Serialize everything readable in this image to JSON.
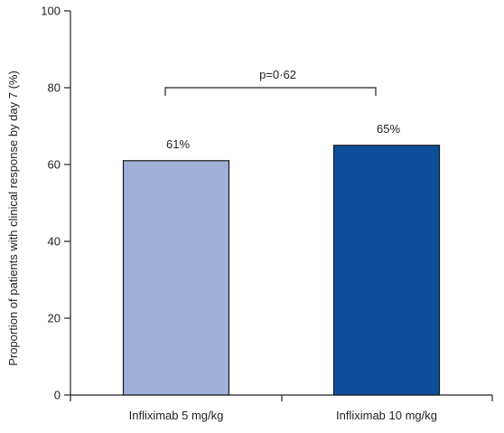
{
  "chart_data": {
    "type": "bar",
    "categories": [
      "Infliximab 5 mg/kg",
      "Infliximab 10 mg/kg"
    ],
    "values": [
      61,
      65
    ],
    "data_labels": [
      "61%",
      "65%"
    ],
    "title": "",
    "xlabel": "",
    "ylabel": "Proportion of patients with clinical response by day 7 (%)",
    "ylim": [
      0,
      100
    ],
    "yticks": [
      0,
      20,
      40,
      60,
      80,
      100
    ],
    "ytick_labels": [
      "0",
      "20",
      "40",
      "60",
      "80",
      "100"
    ],
    "grid": false,
    "legend": "none",
    "bar_colors": [
      "#a1b0d6",
      "#0a4f98"
    ],
    "bar_edge_color": "#1a1a1a",
    "annotation": {
      "text": "p=0·62",
      "type": "bracket",
      "between": [
        "Infliximab 5 mg/kg",
        "Infliximab 10 mg/kg"
      ],
      "y": 80
    }
  }
}
